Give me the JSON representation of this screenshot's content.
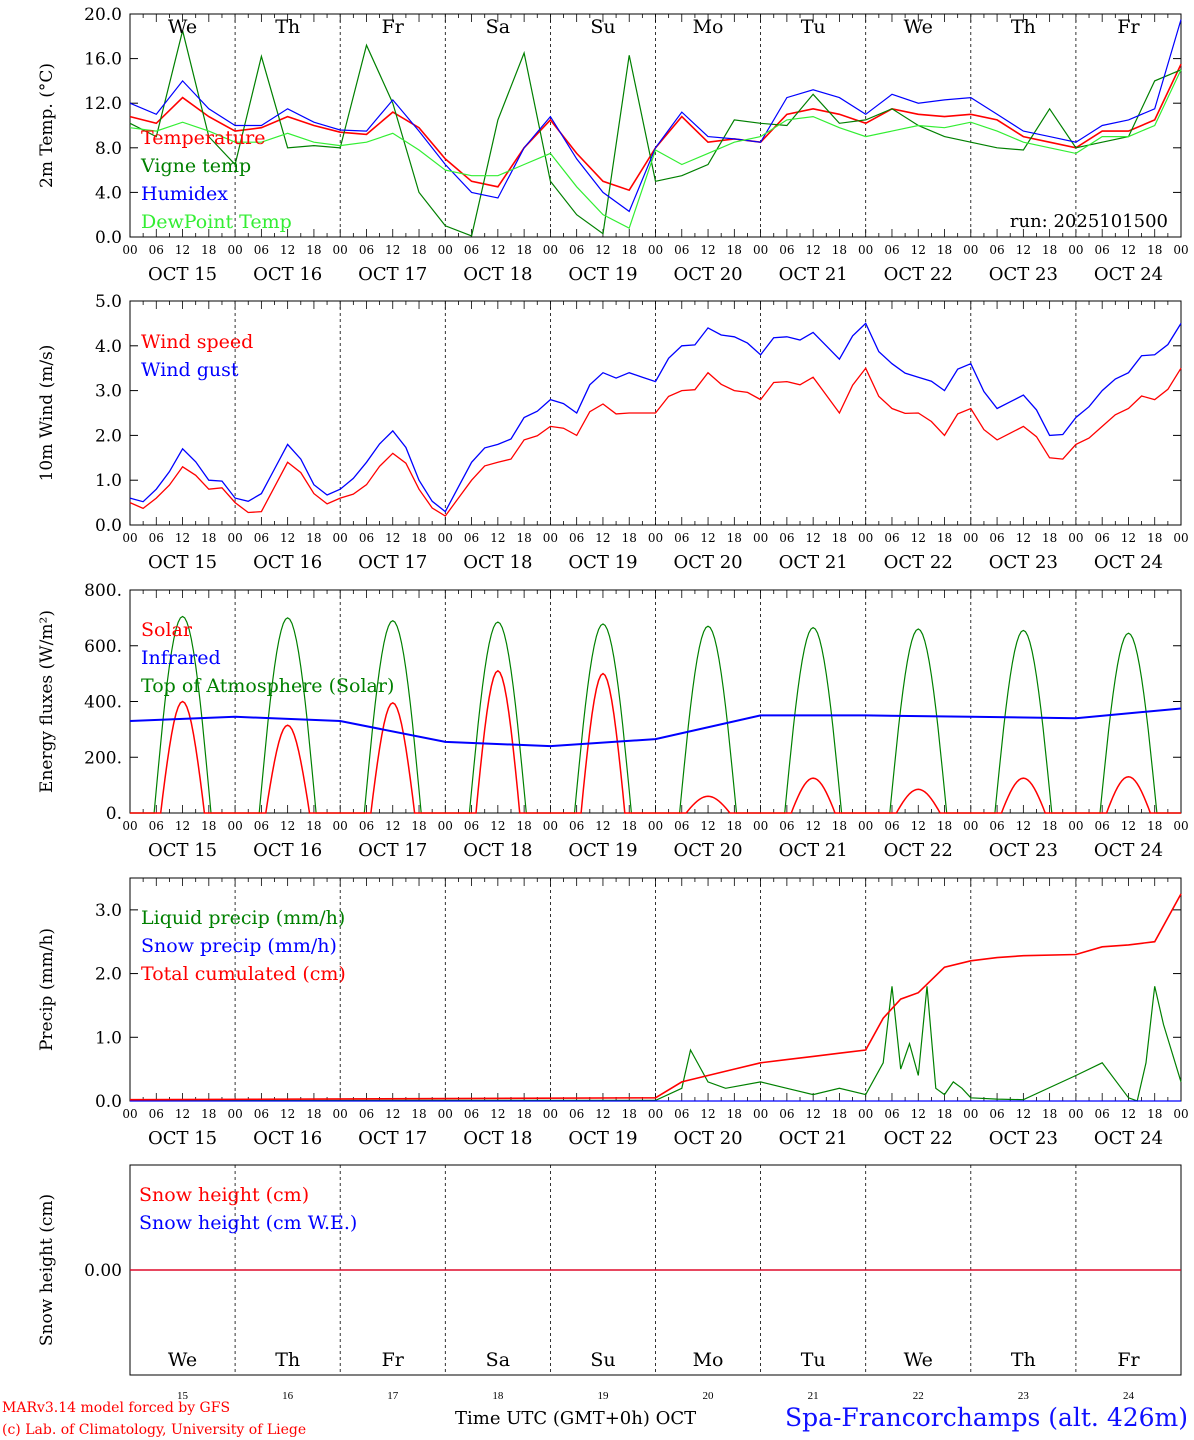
{
  "chart_data": [
    {
      "type": "line",
      "ylabel": "2m Temp. (°C)",
      "ylim": [
        0,
        20
      ],
      "yticks": [
        "0.0",
        "4.0",
        "8.0",
        "12.0",
        "16.0",
        "20.0"
      ],
      "run_label": "run: 2025101500",
      "x_unit": "hours since Oct 15 00 UTC",
      "series": [
        {
          "name": "Temperature",
          "color": "#ff0000",
          "x": [
            0,
            6,
            12,
            18,
            24,
            30,
            36,
            42,
            48,
            54,
            60,
            66,
            72,
            78,
            84,
            90,
            96,
            102,
            108,
            114,
            120,
            126,
            132,
            138,
            144,
            150,
            156,
            162,
            168,
            174,
            180,
            186,
            192,
            198,
            204,
            210,
            216,
            222,
            228,
            234,
            240
          ],
          "y": [
            10.8,
            10.2,
            12.5,
            10.8,
            9.5,
            9.8,
            10.8,
            10.0,
            9.4,
            9.2,
            11.2,
            9.8,
            7.0,
            5.0,
            4.5,
            8.0,
            10.5,
            7.5,
            5.0,
            4.2,
            8.0,
            10.8,
            8.5,
            8.8,
            8.5,
            11.0,
            11.5,
            11.0,
            10.2,
            11.5,
            11.0,
            10.8,
            11.0,
            10.5,
            9.0,
            8.5,
            8.0,
            9.5,
            9.5,
            10.5,
            15.5
          ]
        },
        {
          "name": "Vigne temp",
          "color": "#008000",
          "x": [
            0,
            6,
            12,
            18,
            24,
            30,
            36,
            42,
            48,
            54,
            60,
            66,
            72,
            78,
            84,
            90,
            96,
            102,
            108,
            114,
            120,
            126,
            132,
            138,
            144,
            150,
            156,
            162,
            168,
            174,
            180,
            186,
            192,
            198,
            204,
            210,
            216,
            222,
            228,
            234,
            240
          ],
          "y": [
            10.2,
            9.0,
            18.5,
            9.0,
            6.5,
            16.2,
            8.0,
            8.2,
            8.0,
            17.2,
            12.0,
            4.0,
            1.0,
            0.1,
            10.5,
            16.5,
            5.0,
            2.0,
            0.3,
            16.3,
            5.0,
            5.5,
            6.5,
            10.5,
            10.2,
            10.0,
            12.8,
            10.2,
            10.5,
            11.5,
            10.0,
            9.0,
            8.5,
            8.0,
            7.8,
            11.5,
            8.0,
            8.5,
            9.0,
            14.0,
            15.0
          ]
        },
        {
          "name": "Humidex",
          "color": "#0000ff",
          "x": [
            0,
            6,
            12,
            18,
            24,
            30,
            36,
            42,
            48,
            54,
            60,
            66,
            72,
            78,
            84,
            90,
            96,
            102,
            108,
            114,
            120,
            126,
            132,
            138,
            144,
            150,
            156,
            162,
            168,
            174,
            180,
            186,
            192,
            198,
            204,
            210,
            216,
            222,
            228,
            234,
            240
          ],
          "y": [
            12.0,
            11.0,
            14.0,
            11.5,
            10.0,
            10.0,
            11.5,
            10.3,
            9.6,
            9.5,
            12.3,
            9.5,
            6.5,
            4.0,
            3.5,
            8.0,
            10.8,
            7.0,
            4.0,
            2.3,
            8.0,
            11.2,
            9.0,
            8.8,
            8.5,
            12.5,
            13.2,
            12.5,
            11.0,
            12.8,
            12.0,
            12.3,
            12.5,
            11.0,
            9.5,
            9.0,
            8.5,
            10.0,
            10.5,
            11.5,
            19.5
          ]
        },
        {
          "name": "DewPoint Temp",
          "color": "#33ee33",
          "x": [
            0,
            6,
            12,
            18,
            24,
            30,
            36,
            42,
            48,
            54,
            60,
            66,
            72,
            78,
            84,
            90,
            96,
            102,
            108,
            114,
            120,
            126,
            132,
            138,
            144,
            150,
            156,
            162,
            168,
            174,
            180,
            186,
            192,
            198,
            204,
            210,
            216,
            222,
            228,
            234,
            240
          ],
          "y": [
            9.8,
            9.5,
            10.3,
            9.5,
            8.5,
            8.5,
            9.3,
            8.5,
            8.2,
            8.5,
            9.3,
            7.8,
            6.0,
            5.5,
            5.5,
            6.5,
            7.5,
            4.5,
            2.0,
            0.8,
            7.8,
            6.5,
            7.5,
            8.5,
            9.0,
            10.5,
            10.8,
            9.8,
            9.0,
            9.5,
            10.0,
            9.8,
            10.3,
            9.5,
            8.5,
            8.0,
            7.5,
            9.0,
            9.0,
            10.0,
            15.0
          ]
        }
      ]
    },
    {
      "type": "line",
      "ylabel": "10m Wind (m/s)",
      "ylim": [
        0,
        5
      ],
      "yticks": [
        "0.0",
        "1.0",
        "2.0",
        "3.0",
        "4.0",
        "5.0"
      ],
      "series": [
        {
          "name": "Wind speed",
          "color": "#ff0000",
          "x": [
            0,
            6,
            12,
            18,
            24,
            30,
            36,
            42,
            48,
            54,
            60,
            66,
            72,
            78,
            84,
            90,
            96,
            102,
            108,
            114,
            120,
            126,
            132,
            138,
            144,
            150,
            156,
            162,
            168,
            174,
            180,
            186,
            192,
            198,
            204,
            210,
            216,
            222,
            228,
            234,
            240
          ],
          "y": [
            0.5,
            0.6,
            1.3,
            0.8,
            0.5,
            0.3,
            1.4,
            0.7,
            0.6,
            0.9,
            1.6,
            0.8,
            0.2,
            1.0,
            1.4,
            1.9,
            2.2,
            2.0,
            2.7,
            2.5,
            2.5,
            3.0,
            3.4,
            3.0,
            2.8,
            3.2,
            3.3,
            2.5,
            3.5,
            2.6,
            2.5,
            2.0,
            2.6,
            1.9,
            2.2,
            1.5,
            1.8,
            2.2,
            2.6,
            2.8,
            3.5
          ]
        },
        {
          "name": "Wind gust",
          "color": "#0000ff",
          "x": [
            0,
            6,
            12,
            18,
            24,
            30,
            36,
            42,
            48,
            54,
            60,
            66,
            72,
            78,
            84,
            90,
            96,
            102,
            108,
            114,
            120,
            126,
            132,
            138,
            144,
            150,
            156,
            162,
            168,
            174,
            180,
            186,
            192,
            198,
            204,
            210,
            216,
            222,
            228,
            234,
            240
          ],
          "y": [
            0.6,
            0.8,
            1.7,
            1.0,
            0.6,
            0.7,
            1.8,
            0.9,
            0.8,
            1.4,
            2.1,
            1.0,
            0.3,
            1.4,
            1.8,
            2.4,
            2.8,
            2.5,
            3.4,
            3.4,
            3.2,
            4.0,
            4.4,
            4.2,
            3.8,
            4.2,
            4.3,
            3.7,
            4.5,
            3.6,
            3.3,
            3.0,
            3.6,
            2.6,
            2.9,
            2.0,
            2.4,
            3.0,
            3.4,
            3.8,
            4.5
          ]
        }
      ]
    },
    {
      "type": "line",
      "ylabel": "Energy fluxes (W/m²)",
      "ylim": [
        0,
        800
      ],
      "yticks": [
        "0.",
        "200.",
        "400.",
        "600.",
        "800."
      ],
      "series": [
        {
          "name": "Solar",
          "color": "#ff0000",
          "peaks": [
            400,
            315,
            395,
            510,
            500,
            60,
            125,
            85,
            125,
            130
          ]
        },
        {
          "name": "Infrared",
          "color": "#0000ff",
          "daily": [
            330,
            345,
            330,
            255,
            240,
            265,
            350,
            350,
            345,
            340,
            375
          ]
        },
        {
          "name": "Top of Atmosphere (Solar)",
          "color": "#008000",
          "peaks": [
            705,
            700,
            690,
            685,
            678,
            670,
            665,
            660,
            655,
            645
          ]
        }
      ]
    },
    {
      "type": "line",
      "ylabel": "Precip (mm/h)",
      "ylim": [
        0,
        3.5
      ],
      "yticks": [
        "0.0",
        "1.0",
        "2.0",
        "3.0"
      ],
      "series": [
        {
          "name": "Liquid precip (mm/h)",
          "color": "#008000",
          "x": [
            0,
            120,
            126,
            128,
            132,
            136,
            144,
            150,
            156,
            162,
            168,
            172,
            174,
            176,
            178,
            180,
            182,
            184,
            186,
            188,
            190,
            192,
            198,
            204,
            216,
            222,
            228,
            230,
            232,
            234,
            236,
            240
          ],
          "y": [
            0.01,
            0.01,
            0.2,
            0.8,
            0.3,
            0.2,
            0.3,
            0.2,
            0.1,
            0.2,
            0.1,
            0.6,
            1.8,
            0.5,
            0.9,
            0.4,
            1.8,
            0.2,
            0.1,
            0.3,
            0.2,
            0.05,
            0.03,
            0.02,
            0.4,
            0.6,
            0.05,
            0.0,
            0.6,
            1.8,
            1.2,
            0.3
          ]
        },
        {
          "name": "Snow precip (mm/h)",
          "color": "#0000ff",
          "x": [
            0,
            240
          ],
          "y": [
            0,
            0
          ]
        },
        {
          "name": "Total cumulated (cm)",
          "color": "#ff0000",
          "x": [
            0,
            120,
            126,
            132,
            138,
            144,
            150,
            156,
            162,
            168,
            172,
            176,
            180,
            186,
            192,
            198,
            204,
            216,
            222,
            228,
            234,
            240
          ],
          "y": [
            0.02,
            0.05,
            0.3,
            0.4,
            0.5,
            0.6,
            0.65,
            0.7,
            0.75,
            0.8,
            1.3,
            1.6,
            1.7,
            2.1,
            2.2,
            2.25,
            2.28,
            2.3,
            2.42,
            2.45,
            2.5,
            3.25
          ]
        }
      ]
    },
    {
      "type": "line",
      "ylabel": "Snow height (cm)",
      "yticks": [
        "0.00"
      ],
      "series": [
        {
          "name": "Snow height (cm)",
          "color": "#ff0000",
          "x": [
            0,
            240
          ],
          "y": [
            0,
            0
          ]
        },
        {
          "name": "Snow height (cm W.E.)",
          "color": "#0000ff",
          "x": [
            0,
            240
          ],
          "y": [
            0,
            0
          ]
        }
      ]
    }
  ],
  "days_top": [
    {
      "label": "We",
      "color": "#000000"
    },
    {
      "label": "Th",
      "color": "#000000"
    },
    {
      "label": "Fr",
      "color": "#000000"
    },
    {
      "label": "Sa",
      "color": "#ff0000"
    },
    {
      "label": "Su",
      "color": "#ff0000"
    },
    {
      "label": "Mo",
      "color": "#000000"
    },
    {
      "label": "Tu",
      "color": "#000000"
    },
    {
      "label": "We",
      "color": "#000000"
    },
    {
      "label": "Th",
      "color": "#000000"
    },
    {
      "label": "Fr",
      "color": "#000000"
    }
  ],
  "dates": [
    "OCT 15",
    "OCT 16",
    "OCT 17",
    "OCT 18",
    "OCT 19",
    "OCT 20",
    "OCT 21",
    "OCT 22",
    "OCT 23",
    "OCT 24"
  ],
  "day_numbers": [
    "15",
    "16",
    "17",
    "18",
    "19",
    "20",
    "21",
    "22",
    "23",
    "24"
  ],
  "hour_labels": [
    "00",
    "06",
    "12",
    "18"
  ],
  "hour_label_end": "00",
  "footer": {
    "model": "MARv3.14 model forced by GFS",
    "credit": "(c) Lab. of Climatology, University of Liege",
    "time_label": "Time UTC (GMT+0h) OCT",
    "site": "Spa-Francorchamps (alt. 426m)"
  },
  "colors": {
    "red": "#ff0000",
    "green": "#008000",
    "blue": "#0000ff",
    "lightgreen": "#33ee33"
  }
}
